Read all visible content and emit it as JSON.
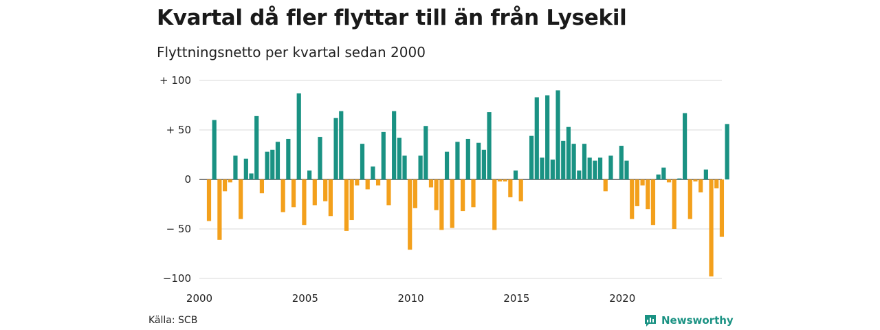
{
  "title": "Kvartal då fler flyttar till än från Lysekil",
  "subtitle": "Flyttningsnetto per kvartal sedan 2000",
  "source": "Källa: SCB",
  "brand": "Newsworthy",
  "colors": {
    "positive": "#1a9283",
    "negative": "#f3a01c",
    "grid": "#d9d9d9",
    "axis": "#333333"
  },
  "chart_data": {
    "type": "bar",
    "x_start_year": 2000,
    "periods_per_year": 4,
    "ylim": [
      -100,
      100
    ],
    "yticks": [
      {
        "value": 100,
        "label": "+ 100"
      },
      {
        "value": 50,
        "label": "+  50"
      },
      {
        "value": 0,
        "label": "0"
      },
      {
        "value": -50,
        "label": "− 50"
      },
      {
        "value": -100,
        "label": "−100"
      }
    ],
    "xticks": [
      "2000",
      "2005",
      "2010",
      "2015",
      "2020"
    ],
    "grid": true,
    "values": [
      -42,
      60,
      -61,
      -12,
      -3,
      24,
      -40,
      21,
      6,
      64,
      -14,
      28,
      30,
      38,
      -33,
      41,
      -28,
      87,
      -46,
      9,
      -26,
      43,
      -22,
      -37,
      62,
      69,
      -52,
      -41,
      -6,
      36,
      -10,
      13,
      -6,
      48,
      -26,
      69,
      42,
      24,
      -71,
      -29,
      24,
      54,
      -8,
      -31,
      -51,
      28,
      -49,
      38,
      -32,
      41,
      -28,
      37,
      30,
      68,
      -51,
      -2,
      -2,
      -18,
      9,
      -22,
      0,
      44,
      83,
      22,
      85,
      20,
      90,
      39,
      53,
      36,
      9,
      36,
      22,
      19,
      22,
      -12,
      24,
      0,
      34,
      19,
      -40,
      -27,
      -6,
      -30,
      -46,
      5,
      12,
      -3,
      -50,
      1,
      67,
      -40,
      -2,
      -13,
      10,
      -98,
      -9,
      -58,
      56
    ]
  }
}
